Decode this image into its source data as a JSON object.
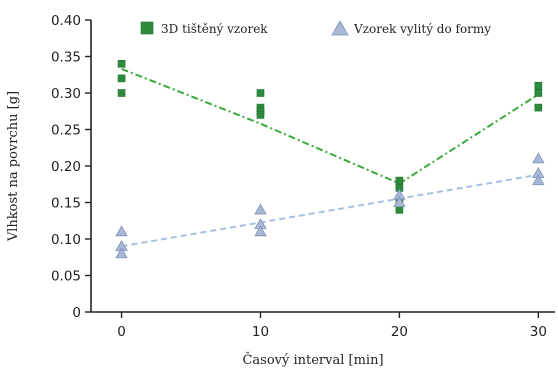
{
  "chart_data": {
    "type": "scatter",
    "xlabel": "Časový interval [min]",
    "ylabel": "Vlhkost na povrchu [g]",
    "x_ticks": [
      0,
      10,
      20,
      30
    ],
    "y_ticks": [
      "0",
      "0.05",
      "0.10",
      "0.15",
      "0.20",
      "0.25",
      "0.30",
      "0.35",
      "0.40"
    ],
    "xlim": [
      -2.2,
      31.2
    ],
    "ylim": [
      0,
      0.4
    ],
    "legend_position": "top",
    "series": [
      {
        "name": "3D tištěný vzorek",
        "marker": "square",
        "color": "#2e8b3e",
        "points": [
          [
            0,
            0.34
          ],
          [
            0,
            0.32
          ],
          [
            0,
            0.3
          ],
          [
            10,
            0.3
          ],
          [
            10,
            0.28
          ],
          [
            10,
            0.275
          ],
          [
            10,
            0.27
          ],
          [
            20,
            0.18
          ],
          [
            20,
            0.17
          ],
          [
            20,
            0.15
          ],
          [
            20,
            0.14
          ],
          [
            30,
            0.31
          ],
          [
            30,
            0.3
          ],
          [
            30,
            0.28
          ]
        ],
        "trend": {
          "style": "dash-dot",
          "color": "#3aa83a",
          "x": [
            0,
            10,
            20,
            30
          ],
          "y": [
            0.333,
            0.258,
            0.176,
            0.298
          ]
        }
      },
      {
        "name": "Vzorek vylitý do formy",
        "marker": "triangle",
        "color": "#aab8d8",
        "points": [
          [
            0,
            0.11
          ],
          [
            0,
            0.09
          ],
          [
            0,
            0.08
          ],
          [
            10,
            0.14
          ],
          [
            10,
            0.12
          ],
          [
            10,
            0.11
          ],
          [
            20,
            0.16
          ],
          [
            20,
            0.15
          ],
          [
            30,
            0.21
          ],
          [
            30,
            0.19
          ],
          [
            30,
            0.18
          ]
        ],
        "trend": {
          "style": "dashed",
          "color": "#a8c0e0",
          "x": [
            0,
            30
          ],
          "y": [
            0.09,
            0.188
          ]
        }
      }
    ]
  }
}
